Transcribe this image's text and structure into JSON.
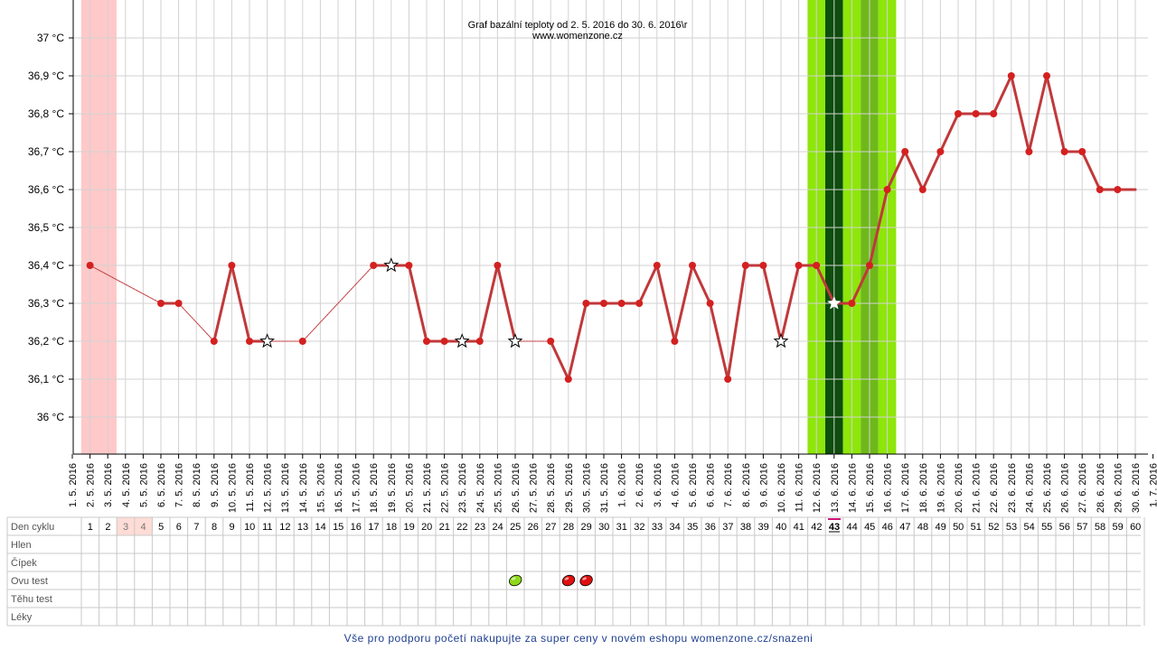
{
  "chart_data": {
    "type": "line",
    "title": "Graf bazální teploty od 2. 5. 2016 do 30. 6. 2016\\r",
    "subtitle": "www.womenzone.cz",
    "y_unit": "°C",
    "ylim": [
      35.9,
      37.1
    ],
    "y_ticks": [
      {
        "value": 36.0,
        "label": "36 °C"
      },
      {
        "value": 36.1,
        "label": "36,1 °C"
      },
      {
        "value": 36.2,
        "label": "36,2 °C"
      },
      {
        "value": 36.3,
        "label": "36,3 °C"
      },
      {
        "value": 36.4,
        "label": "36,4 °C"
      },
      {
        "value": 36.5,
        "label": "36,5 °C"
      },
      {
        "value": 36.6,
        "label": "36,6 °C"
      },
      {
        "value": 36.7,
        "label": "36,7 °C"
      },
      {
        "value": 36.8,
        "label": "36,8 °C"
      },
      {
        "value": 36.9,
        "label": "36,9 °C"
      },
      {
        "value": 37.0,
        "label": "37 °C"
      }
    ],
    "x_dates": [
      "1. 5. 2016",
      "2. 5. 2016",
      "3. 5. 2016",
      "4. 5. 2016",
      "5. 5. 2016",
      "6. 5. 2016",
      "7. 5. 2016",
      "8. 5. 2016",
      "9. 5. 2016",
      "10. 5. 2016",
      "11. 5. 2016",
      "12. 5. 2016",
      "13. 5. 2016",
      "14. 5. 2016",
      "15. 5. 2016",
      "16. 5. 2016",
      "17. 5. 2016",
      "18. 5. 2016",
      "19. 5. 2016",
      "20. 5. 2016",
      "21. 5. 2016",
      "22. 5. 2016",
      "23. 5. 2016",
      "24. 5. 2016",
      "25. 5. 2016",
      "26. 5. 2016",
      "27. 5. 2016",
      "28. 5. 2016",
      "29. 5. 2016",
      "30. 5. 2016",
      "31. 5. 2016",
      "1. 6. 2016",
      "2. 6. 2016",
      "3. 6. 2016",
      "4. 6. 2016",
      "5. 6. 2016",
      "6. 6. 2016",
      "7. 6. 2016",
      "8. 6. 2016",
      "9. 6. 2016",
      "10. 6. 2016",
      "11. 6. 2016",
      "12. 6. 2016",
      "13. 6. 2016",
      "14. 6. 2016",
      "15. 6. 2016",
      "16. 6. 2016",
      "17. 6. 2016",
      "18. 6. 2016",
      "19. 6. 2016",
      "20. 6. 2016",
      "21. 6. 2016",
      "22. 6. 2016",
      "23. 6. 2016",
      "24. 6. 2016",
      "25. 6. 2016",
      "26. 6. 2016",
      "27. 6. 2016",
      "28. 6. 2016",
      "29. 6. 2016",
      "30. 6. 2016",
      "1. 7. 2016"
    ],
    "series": [
      {
        "color": "#c0393b",
        "points": [
          {
            "date": "2. 5. 2016",
            "value": 36.4
          },
          {
            "date": "6. 5. 2016",
            "value": 36.3
          },
          {
            "date": "7. 5. 2016",
            "value": 36.3
          },
          {
            "date": "9. 5. 2016",
            "value": 36.2
          },
          {
            "date": "10. 5. 2016",
            "value": 36.4
          },
          {
            "date": "11. 5. 2016",
            "value": 36.2
          },
          {
            "date": "12. 5. 2016",
            "value": 36.2,
            "marker": "star"
          },
          {
            "date": "14. 5. 2016",
            "value": 36.2
          },
          {
            "date": "18. 5. 2016",
            "value": 36.4
          },
          {
            "date": "19. 5. 2016",
            "value": 36.4,
            "marker": "star"
          },
          {
            "date": "20. 5. 2016",
            "value": 36.4
          },
          {
            "date": "21. 5. 2016",
            "value": 36.2
          },
          {
            "date": "22. 5. 2016",
            "value": 36.2
          },
          {
            "date": "23. 5. 2016",
            "value": 36.2,
            "marker": "star"
          },
          {
            "date": "24. 5. 2016",
            "value": 36.2
          },
          {
            "date": "25. 5. 2016",
            "value": 36.4
          },
          {
            "date": "26. 5. 2016",
            "value": 36.2,
            "marker": "star"
          },
          {
            "date": "28. 5. 2016",
            "value": 36.2
          },
          {
            "date": "29. 5. 2016",
            "value": 36.1
          },
          {
            "date": "30. 5. 2016",
            "value": 36.3
          },
          {
            "date": "31. 5. 2016",
            "value": 36.3
          },
          {
            "date": "1. 6. 2016",
            "value": 36.3
          },
          {
            "date": "2. 6. 2016",
            "value": 36.3
          },
          {
            "date": "3. 6. 2016",
            "value": 36.4
          },
          {
            "date": "4. 6. 2016",
            "value": 36.2
          },
          {
            "date": "5. 6. 2016",
            "value": 36.4
          },
          {
            "date": "6. 6. 2016",
            "value": 36.3
          },
          {
            "date": "7. 6. 2016",
            "value": 36.1
          },
          {
            "date": "8. 6. 2016",
            "value": 36.4
          },
          {
            "date": "9. 6. 2016",
            "value": 36.4
          },
          {
            "date": "10. 6. 2016",
            "value": 36.2,
            "marker": "star"
          },
          {
            "date": "11. 6. 2016",
            "value": 36.4
          },
          {
            "date": "12. 6. 2016",
            "value": 36.4
          },
          {
            "date": "13. 6. 2016",
            "value": 36.3,
            "marker": "star-white"
          },
          {
            "date": "14. 6. 2016",
            "value": 36.3
          },
          {
            "date": "15. 6. 2016",
            "value": 36.4
          },
          {
            "date": "16. 6. 2016",
            "value": 36.6
          },
          {
            "date": "17. 6. 2016",
            "value": 36.7
          },
          {
            "date": "18. 6. 2016",
            "value": 36.6
          },
          {
            "date": "19. 6. 2016",
            "value": 36.7
          },
          {
            "date": "20. 6. 2016",
            "value": 36.8
          },
          {
            "date": "21. 6. 2016",
            "value": 36.8
          },
          {
            "date": "22. 6. 2016",
            "value": 36.8
          },
          {
            "date": "23. 6. 2016",
            "value": 36.9
          },
          {
            "date": "24. 6. 2016",
            "value": 36.7
          },
          {
            "date": "25. 6. 2016",
            "value": 36.9
          },
          {
            "date": "26. 6. 2016",
            "value": 36.7
          },
          {
            "date": "27. 6. 2016",
            "value": 36.7
          },
          {
            "date": "28. 6. 2016",
            "value": 36.6
          },
          {
            "date": "29. 6. 2016",
            "value": 36.6
          },
          {
            "date": "30. 6. 2016",
            "value": 36.6,
            "marker": "none"
          }
        ]
      }
    ],
    "bands": [
      {
        "from": "2. 5. 2016",
        "to": "3. 5. 2016",
        "color": "#ffc9c9"
      },
      {
        "from": "12. 6. 2016",
        "to": "12. 6. 2016",
        "color": "#8ee60a"
      },
      {
        "from": "13. 6. 2016",
        "to": "13. 6. 2016",
        "color": "#0d4d0d"
      },
      {
        "from": "14. 6. 2016",
        "to": "14. 6. 2016",
        "color": "#8ee60a"
      },
      {
        "from": "15. 6. 2016",
        "to": "15. 6. 2016",
        "color": "#6fb81a"
      },
      {
        "from": "16. 6. 2016",
        "to": "16. 6. 2016",
        "color": "#8ee60a"
      }
    ],
    "grid": true,
    "legend": "none"
  },
  "table": {
    "row_labels": [
      "Den cyklu",
      "Hlen",
      "Čípek",
      "Ovu test",
      "Těhu test",
      "Léky"
    ],
    "cycle_days": [
      "1",
      "2",
      "3",
      "4",
      "5",
      "6",
      "7",
      "8",
      "9",
      "10",
      "11",
      "12",
      "13",
      "14",
      "15",
      "16",
      "17",
      "18",
      "19",
      "20",
      "21",
      "22",
      "23",
      "24",
      "25",
      "26",
      "27",
      "28",
      "29",
      "30",
      "31",
      "32",
      "33",
      "34",
      "35",
      "36",
      "37",
      "38",
      "39",
      "40",
      "41",
      "42",
      "43",
      "44",
      "45",
      "46",
      "47",
      "48",
      "49",
      "50",
      "51",
      "52",
      "53",
      "54",
      "55",
      "56",
      "57",
      "58",
      "59",
      "60"
    ],
    "highlight_days": [
      {
        "day": "3",
        "color": "#ffdcd6"
      },
      {
        "day": "4",
        "color": "#ffdcd6"
      }
    ],
    "current_day": "43",
    "current_day_color": "#d0157a",
    "ovu_tests": [
      {
        "day": "25",
        "result": "negative",
        "color": "#8ed81a"
      },
      {
        "day": "28",
        "result": "positive",
        "color": "#e01010"
      },
      {
        "day": "29",
        "result": "positive",
        "color": "#e01010"
      }
    ]
  },
  "footer": {
    "link_text": "Vše pro podporu početí nakupujte za super ceny v novém eshopu womenzone.cz/snazeni"
  }
}
